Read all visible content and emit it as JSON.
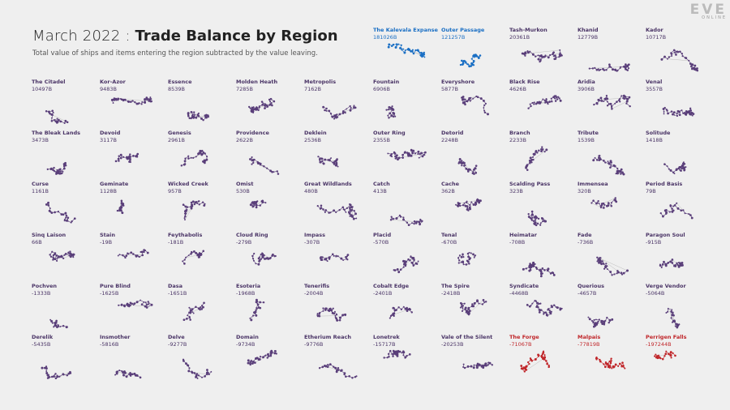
{
  "header": {
    "title_prefix": "March 2022 : ",
    "title_main": "Trade Balance by Region",
    "subtitle": "Total value of ships and items entering the region subtracted by the value leaving."
  },
  "logo": {
    "text": "EVE",
    "subtext": "ONLINE"
  },
  "colors": {
    "positive_high": "#1a6fc4",
    "neutral": "#5a3f7a",
    "negative_high": "#c0262a",
    "text_neutral": "#4a3466",
    "edge": "#9a9a9a"
  },
  "chart_data": {
    "type": "small-multiples-network",
    "title": "Trade Balance by Region",
    "regions": [
      {
        "name": "The Kalevala Expanse",
        "value": "181026B",
        "color": "blue"
      },
      {
        "name": "Outer Passage",
        "value": "121257B",
        "color": "blue"
      },
      {
        "name": "Tash-Murkon",
        "value": "20361B",
        "color": "purple"
      },
      {
        "name": "Khanid",
        "value": "12779B",
        "color": "purple"
      },
      {
        "name": "Kador",
        "value": "10717B",
        "color": "purple"
      },
      {
        "name": "The Citadel",
        "value": "10497B",
        "color": "purple"
      },
      {
        "name": "Kor-Azor",
        "value": "9483B",
        "color": "purple"
      },
      {
        "name": "Essence",
        "value": "8539B",
        "color": "purple"
      },
      {
        "name": "Molden Heath",
        "value": "7285B",
        "color": "purple"
      },
      {
        "name": "Metropolis",
        "value": "7162B",
        "color": "purple"
      },
      {
        "name": "Fountain",
        "value": "6906B",
        "color": "purple"
      },
      {
        "name": "Everyshore",
        "value": "5877B",
        "color": "purple"
      },
      {
        "name": "Black Rise",
        "value": "4626B",
        "color": "purple"
      },
      {
        "name": "Aridia",
        "value": "3906B",
        "color": "purple"
      },
      {
        "name": "Venal",
        "value": "3557B",
        "color": "purple"
      },
      {
        "name": "The Bleak Lands",
        "value": "3473B",
        "color": "purple"
      },
      {
        "name": "Devoid",
        "value": "3117B",
        "color": "purple"
      },
      {
        "name": "Genesis",
        "value": "2961B",
        "color": "purple"
      },
      {
        "name": "Providence",
        "value": "2622B",
        "color": "purple"
      },
      {
        "name": "Deklein",
        "value": "2536B",
        "color": "purple"
      },
      {
        "name": "Outer Ring",
        "value": "2355B",
        "color": "purple"
      },
      {
        "name": "Detorid",
        "value": "2248B",
        "color": "purple"
      },
      {
        "name": "Branch",
        "value": "2233B",
        "color": "purple"
      },
      {
        "name": "Tribute",
        "value": "1539B",
        "color": "purple"
      },
      {
        "name": "Solitude",
        "value": "1418B",
        "color": "purple"
      },
      {
        "name": "Curse",
        "value": "1161B",
        "color": "purple"
      },
      {
        "name": "Geminate",
        "value": "1128B",
        "color": "purple"
      },
      {
        "name": "Wicked Creek",
        "value": "957B",
        "color": "purple"
      },
      {
        "name": "Omist",
        "value": "530B",
        "color": "purple"
      },
      {
        "name": "Great Wildlands",
        "value": "480B",
        "color": "purple"
      },
      {
        "name": "Catch",
        "value": "413B",
        "color": "purple"
      },
      {
        "name": "Cache",
        "value": "362B",
        "color": "purple"
      },
      {
        "name": "Scalding Pass",
        "value": "323B",
        "color": "purple"
      },
      {
        "name": "Immensea",
        "value": "320B",
        "color": "purple"
      },
      {
        "name": "Period Basis",
        "value": "79B",
        "color": "purple"
      },
      {
        "name": "Sinq Laison",
        "value": "66B",
        "color": "purple"
      },
      {
        "name": "Stain",
        "value": "-19B",
        "color": "purple"
      },
      {
        "name": "Feythabolis",
        "value": "-181B",
        "color": "purple"
      },
      {
        "name": "Cloud Ring",
        "value": "-279B",
        "color": "purple"
      },
      {
        "name": "Impass",
        "value": "-307B",
        "color": "purple"
      },
      {
        "name": "Placid",
        "value": "-570B",
        "color": "purple"
      },
      {
        "name": "Tenal",
        "value": "-670B",
        "color": "purple"
      },
      {
        "name": "Heimatar",
        "value": "-708B",
        "color": "purple"
      },
      {
        "name": "Fade",
        "value": "-736B",
        "color": "purple"
      },
      {
        "name": "Paragon Soul",
        "value": "-915B",
        "color": "purple"
      },
      {
        "name": "Pochven",
        "value": "-1333B",
        "color": "purple"
      },
      {
        "name": "Pure Blind",
        "value": "-1625B",
        "color": "purple"
      },
      {
        "name": "Dasa",
        "value": "-1651B",
        "color": "purple"
      },
      {
        "name": "Esoteria",
        "value": "-1968B",
        "color": "purple"
      },
      {
        "name": "Tenerifis",
        "value": "-2004B",
        "color": "purple"
      },
      {
        "name": "Cobalt Edge",
        "value": "-2401B",
        "color": "purple"
      },
      {
        "name": "The Spire",
        "value": "-2418B",
        "color": "purple"
      },
      {
        "name": "Syndicate",
        "value": "-4468B",
        "color": "purple"
      },
      {
        "name": "Querious",
        "value": "-4657B",
        "color": "purple"
      },
      {
        "name": "Verge Vendor",
        "value": "-5064B",
        "color": "purple"
      },
      {
        "name": "Derelik",
        "value": "-5435B",
        "color": "purple"
      },
      {
        "name": "Insmother",
        "value": "-5816B",
        "color": "purple"
      },
      {
        "name": "Delve",
        "value": "-9277B",
        "color": "purple"
      },
      {
        "name": "Domain",
        "value": "-9734B",
        "color": "purple"
      },
      {
        "name": "Etherium Reach",
        "value": "-9776B",
        "color": "purple"
      },
      {
        "name": "Lonetrek",
        "value": "-15717B",
        "color": "purple"
      },
      {
        "name": "Vale of the Silent",
        "value": "-20253B",
        "color": "purple"
      },
      {
        "name": "The Forge",
        "value": "-71067B",
        "color": "red"
      },
      {
        "name": "Malpais",
        "value": "-77819B",
        "color": "red"
      },
      {
        "name": "Perrigen Falls",
        "value": "-197244B",
        "color": "red"
      }
    ]
  }
}
